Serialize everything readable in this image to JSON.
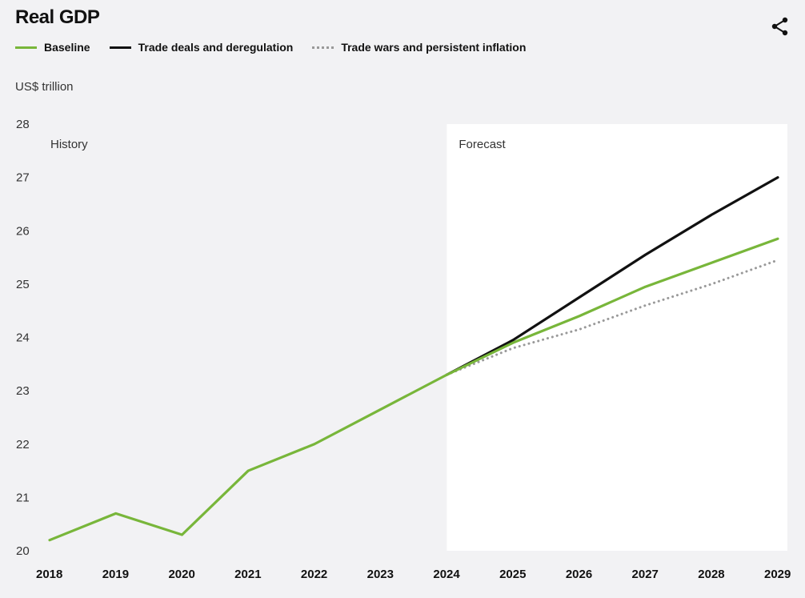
{
  "title": "Real GDP",
  "share_icon": "share-icon",
  "legend": [
    {
      "label": "Baseline",
      "color": "#78b63a",
      "style": "solid"
    },
    {
      "label": "Trade deals and deregulation",
      "color": "#111111",
      "style": "solid"
    },
    {
      "label": "Trade wars and persistent inflation",
      "color": "#999999",
      "style": "dotted"
    }
  ],
  "unit_label": "US$ trillion",
  "chart_data": {
    "type": "line",
    "title": "Real GDP",
    "ylabel": "US$ trillion",
    "xlabel": "",
    "ylim": [
      20,
      28
    ],
    "yticks": [
      20,
      21,
      22,
      23,
      24,
      25,
      26,
      27,
      28
    ],
    "categories": [
      "2018",
      "2019",
      "2020",
      "2021",
      "2022",
      "2023",
      "2024",
      "2025",
      "2026",
      "2027",
      "2028",
      "2029"
    ],
    "regions": [
      {
        "label": "History",
        "from": "2018",
        "to": "2024"
      },
      {
        "label": "Forecast",
        "from": "2024",
        "to": "2029"
      }
    ],
    "series": [
      {
        "name": "Baseline",
        "color": "#78b63a",
        "style": "solid",
        "values": [
          20.2,
          20.7,
          20.3,
          21.5,
          22.0,
          22.65,
          23.3,
          23.9,
          24.4,
          24.95,
          25.4,
          25.85
        ]
      },
      {
        "name": "Trade deals and deregulation",
        "color": "#111111",
        "style": "solid",
        "values": [
          null,
          null,
          null,
          null,
          null,
          null,
          23.3,
          23.95,
          24.75,
          25.55,
          26.3,
          27.0
        ]
      },
      {
        "name": "Trade wars and persistent inflation",
        "color": "#999999",
        "style": "dotted",
        "values": [
          null,
          null,
          null,
          null,
          null,
          null,
          23.3,
          23.8,
          24.15,
          24.6,
          25.0,
          25.45
        ]
      }
    ]
  }
}
